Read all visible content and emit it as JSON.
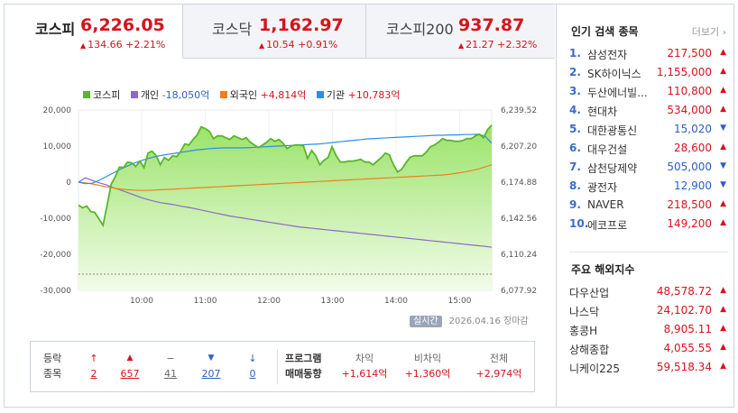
{
  "tabs": [
    {
      "name": "코스피",
      "value": "6,226.05",
      "change": "134.66",
      "pct": "+2.21%"
    },
    {
      "name": "코스닥",
      "value": "1,162.97",
      "change": "10.54",
      "pct": "+0.91%"
    },
    {
      "name": "코스피200",
      "value": "937.87",
      "change": "21.27",
      "pct": "+2.32%"
    }
  ],
  "legend": {
    "kospi": "코스피",
    "individual": "개인",
    "individual_value": "-18,050억",
    "foreign": "외국인",
    "foreign_value": "+4,814억",
    "institution": "기관",
    "institution_value": "+10,783억"
  },
  "chart_data": {
    "type": "line",
    "left_axis_ticks": [
      "20,000",
      "10,000",
      "0",
      "-10,000",
      "-20,000",
      "-30,000"
    ],
    "right_axis_ticks": [
      "6,239.52",
      "6,207.20",
      "6,174.88",
      "6,142.56",
      "6,110.24",
      "6,077.92"
    ],
    "x_ticks": [
      "10:00",
      "11:00",
      "12:00",
      "13:00",
      "14:00",
      "15:00"
    ],
    "series": [
      {
        "name": "코스피",
        "color": "#5ab52a",
        "axis": "right",
        "values": [
          6154.3,
          6151.9,
          6153.5,
          6148.5,
          6147.7,
          6142.0,
          6136.2,
          6154.3,
          6173.2,
          6179.7,
          6188.4,
          6188.0,
          6192.9,
          6192.1,
          6188.9,
          6193.7,
          6188.0,
          6201.0,
          6202.6,
          6198.5,
          6190.4,
          6196.9,
          6194.5,
          6198.5,
          6197.7,
          6202.6,
          6209.1,
          6208.2,
          6213.1,
          6217.1,
          6224.4,
          6222.8,
          6220.4,
          6213.9,
          6216.3,
          6216.3,
          6214.7,
          6213.1,
          6216.3,
          6214.7,
          6213.1,
          6214.7,
          6210.6,
          6208.2,
          6205.8,
          6208.2,
          6210.6,
          6213.9,
          6211.5,
          6213.1,
          6209.8,
          6204.9,
          6207.3,
          6208.2,
          6208.2,
          6207.3,
          6196.1,
          6203.3,
          6198.5,
          6190.4,
          6194.5,
          6196.9,
          6206.6,
          6198.5,
          6192.9,
          6192.9,
          6193.7,
          6193.7,
          6194.5,
          6195.3,
          6192.9,
          6192.9,
          6190.4,
          6193.7,
          6196.9,
          6200.9,
          6199.3,
          6190.4,
          6184.0,
          6186.4,
          6192.1,
          6196.9,
          6198.5,
          6198.5,
          6198.5,
          6201.7,
          6206.6,
          6208.2,
          6210.6,
          6213.9,
          6212.3,
          6212.3,
          6211.5,
          6211.5,
          6212.3,
          6213.9,
          6213.9,
          6216.3,
          6217.9,
          6214.7,
          6222.0,
          6226.05
        ]
      },
      {
        "name": "개인",
        "color": "#8c6bc4",
        "axis": "left",
        "values": [
          0,
          1200,
          500,
          -200,
          -700,
          -1500,
          -2100,
          -2800,
          -3500,
          -4200,
          -4800,
          -5300,
          -5700,
          -6000,
          -6300,
          -6700,
          -7000,
          -7400,
          -7800,
          -8200,
          -8600,
          -9000,
          -9400,
          -9700,
          -10000,
          -10300,
          -10600,
          -10900,
          -11200,
          -11500,
          -11800,
          -12100,
          -12400,
          -12600,
          -12800,
          -13000,
          -13200,
          -13400,
          -13600,
          -13800,
          -14000,
          -14200,
          -14400,
          -14600,
          -14800,
          -15000,
          -15200,
          -15400,
          -15600,
          -15800,
          -16000,
          -16200,
          -16400,
          -16600,
          -16800,
          -17000,
          -17200,
          -17400,
          -17600,
          -17800,
          -18050
        ]
      },
      {
        "name": "외국인",
        "color": "#f07f1a",
        "axis": "left",
        "values": [
          0,
          -200,
          -500,
          -900,
          -1300,
          -1600,
          -1900,
          -2100,
          -2200,
          -2300,
          -2300,
          -2200,
          -2100,
          -2000,
          -1900,
          -1800,
          -1700,
          -1600,
          -1500,
          -1400,
          -1300,
          -1200,
          -1100,
          -1000,
          -900,
          -800,
          -700,
          -600,
          -500,
          -400,
          -300,
          -200,
          -100,
          0,
          100,
          200,
          300,
          400,
          500,
          600,
          700,
          800,
          900,
          1000,
          1100,
          1200,
          1300,
          1400,
          1500,
          1600,
          1700,
          1800,
          1900,
          2000,
          2200,
          2500,
          2800,
          3200,
          3600,
          4200,
          4814
        ]
      },
      {
        "name": "기관",
        "color": "#2f8de4",
        "axis": "left",
        "values": [
          0,
          -400,
          -300,
          500,
          1500,
          2500,
          3500,
          4400,
          5200,
          5900,
          6500,
          7000,
          7400,
          7700,
          8000,
          8300,
          8600,
          8900,
          9100,
          9300,
          9400,
          9500,
          9500,
          9500,
          9500,
          9600,
          9700,
          9800,
          9900,
          10000,
          10100,
          10200,
          10300,
          10400,
          10500,
          10600,
          10800,
          11000,
          11200,
          11400,
          11600,
          11800,
          12000,
          12100,
          12200,
          12300,
          12400,
          12500,
          12600,
          12700,
          12800,
          12900,
          13000,
          13000,
          13100,
          13100,
          13200,
          13200,
          13300,
          12800,
          10783
        ]
      }
    ],
    "left_ylim": [
      -30000,
      20000
    ],
    "right_ylim": [
      6077.92,
      6239.52
    ]
  },
  "stamp": {
    "badge": "실시간",
    "date": "2026.04.16",
    "status": "장마감"
  },
  "breadth": {
    "label_line1": "등락",
    "label_line2": "종목",
    "items": [
      {
        "icon": "↑",
        "value": "2",
        "color": "red"
      },
      {
        "icon": "▲",
        "value": "657",
        "color": "red"
      },
      {
        "icon": "−",
        "value": "41",
        "color": "gray"
      },
      {
        "icon": "▼",
        "value": "207",
        "color": "blue"
      },
      {
        "icon": "↓",
        "value": "0",
        "color": "blue"
      }
    ]
  },
  "program": {
    "label_line1": "프로그램",
    "label_line2": "매매동향",
    "cols": [
      {
        "head": "차익",
        "value": "+1,614억"
      },
      {
        "head": "비차익",
        "value": "+1,360억"
      },
      {
        "head": "전체",
        "value": "+2,974억"
      }
    ]
  },
  "popular": {
    "title": "인기 검색 종목",
    "more": "더보기",
    "items": [
      {
        "rank": "1.",
        "name": "삼성전자",
        "price": "217,500",
        "dir": "up"
      },
      {
        "rank": "2.",
        "name": "SK하이닉스",
        "price": "1,155,000",
        "dir": "up"
      },
      {
        "rank": "3.",
        "name": "두산에너빌...",
        "price": "110,800",
        "dir": "up"
      },
      {
        "rank": "4.",
        "name": "현대차",
        "price": "534,000",
        "dir": "up"
      },
      {
        "rank": "5.",
        "name": "대한광통신",
        "price": "15,020",
        "dir": "down"
      },
      {
        "rank": "6.",
        "name": "대우건설",
        "price": "28,600",
        "dir": "up"
      },
      {
        "rank": "7.",
        "name": "삼천당제약",
        "price": "505,000",
        "dir": "down"
      },
      {
        "rank": "8.",
        "name": "광전자",
        "price": "12,900",
        "dir": "down"
      },
      {
        "rank": "9.",
        "name": "NAVER",
        "price": "218,500",
        "dir": "up"
      },
      {
        "rank": "10.",
        "name": "에코프로",
        "price": "149,200",
        "dir": "up"
      }
    ]
  },
  "world": {
    "title": "주요 해외지수",
    "items": [
      {
        "name": "다우산업",
        "value": "48,578.72"
      },
      {
        "name": "나스닥",
        "value": "24,102.70"
      },
      {
        "name": "홍콩H",
        "value": "8,905.11"
      },
      {
        "name": "상해종합",
        "value": "4,055.55"
      },
      {
        "name": "니케이225",
        "value": "59,518.34"
      }
    ]
  },
  "colors": {
    "up": "#d4141d",
    "down": "#2b5fc2",
    "kospi": "#5ab52a",
    "individual": "#8c6bc4",
    "foreign": "#f07f1a",
    "institution": "#2f8de4"
  }
}
